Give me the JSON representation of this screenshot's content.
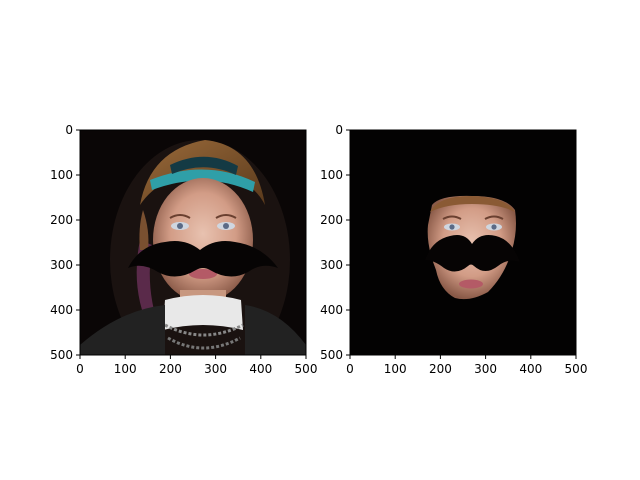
{
  "figure": {
    "background": "#ffffff"
  },
  "chart_data": [
    {
      "type": "image",
      "content": "portrait with a black mustache overlay over the mouth",
      "xlim": [
        0,
        500
      ],
      "ylim": [
        500,
        0
      ],
      "xticks": [
        0,
        100,
        200,
        300,
        400,
        500
      ],
      "yticks": [
        0,
        100,
        200,
        300,
        400,
        500
      ],
      "xtick_labels": [
        "0",
        "100",
        "200",
        "300",
        "400",
        "500"
      ],
      "ytick_labels": [
        "0",
        "100",
        "200",
        "300",
        "400",
        "500"
      ],
      "grid": false
    },
    {
      "type": "image",
      "content": "same portrait masked to the face region only, black elsewhere, with mustache overlay",
      "xlim": [
        0,
        500
      ],
      "ylim": [
        500,
        0
      ],
      "xticks": [
        0,
        100,
        200,
        300,
        400,
        500
      ],
      "yticks": [
        0,
        100,
        200,
        300,
        400,
        500
      ],
      "xtick_labels": [
        "0",
        "100",
        "200",
        "300",
        "400",
        "500"
      ],
      "ytick_labels": [
        "0",
        "100",
        "200",
        "300",
        "400",
        "500"
      ],
      "grid": false
    }
  ]
}
